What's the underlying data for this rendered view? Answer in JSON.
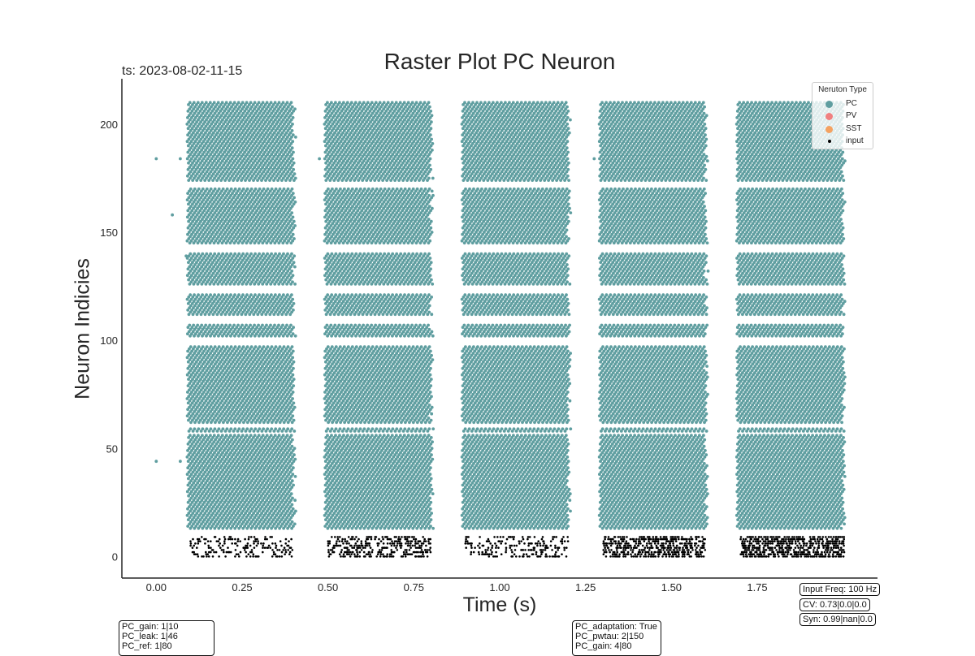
{
  "chart_data": {
    "type": "scatter",
    "title": "Raster Plot PC Neuron",
    "timestamp_label": "ts: 2023-08-02-11-15",
    "xlabel": "Time (s)",
    "ylabel": "Neuron Indicies",
    "xlim": [
      -0.1,
      2.1
    ],
    "ylim": [
      -10,
      221
    ],
    "xticks": [
      0.0,
      0.25,
      0.5,
      0.75,
      1.0,
      1.25,
      1.5,
      1.75
    ],
    "xtick_labels": [
      "0.00",
      "0.25",
      "0.50",
      "0.75",
      "1.00",
      "1.25",
      "1.50",
      "1.75"
    ],
    "yticks": [
      0,
      50,
      100,
      150,
      200
    ],
    "ytick_labels": [
      "0",
      "50",
      "100",
      "150",
      "200"
    ],
    "grid": false,
    "legend_position": "top-right",
    "legend_title": "Neruton Type",
    "series": [
      {
        "name": "PC",
        "color": "#5f9ea0",
        "neuron_range": [
          13,
          210
        ],
        "burst_windows": [
          [
            0.09,
            0.4
          ],
          [
            0.49,
            0.8
          ],
          [
            0.89,
            1.2
          ],
          [
            1.29,
            1.6
          ],
          [
            1.69,
            2.0
          ]
        ],
        "inactive_neurons": [
          57,
          60,
          61,
          98,
          99,
          100,
          101,
          108,
          109,
          110,
          111,
          122,
          123,
          124,
          125,
          141,
          142,
          143,
          144,
          171,
          172,
          173
        ]
      },
      {
        "name": "PV",
        "color": "#f08080",
        "points": []
      },
      {
        "name": "SST",
        "color": "#f4a261",
        "points": []
      },
      {
        "name": "input",
        "color": "#000000",
        "neuron_range": [
          0,
          9
        ],
        "burst_windows": [
          [
            0.1,
            0.4
          ],
          [
            0.5,
            0.8
          ],
          [
            0.9,
            1.2
          ],
          [
            1.3,
            1.6
          ],
          [
            1.7,
            2.0
          ]
        ],
        "density": [
          0.45,
          0.7,
          0.5,
          0.9,
          1.0
        ]
      }
    ],
    "isolated_pc_spikes": [
      {
        "x": 0.0,
        "y": 184
      },
      {
        "x": 0.07,
        "y": 184
      },
      {
        "x": 0.047,
        "y": 158
      },
      {
        "x": 0.087,
        "y": 139
      },
      {
        "x": 0.0,
        "y": 44
      },
      {
        "x": 0.07,
        "y": 44
      },
      {
        "x": 0.475,
        "y": 184
      },
      {
        "x": 1.275,
        "y": 184
      }
    ]
  },
  "info_boxes": {
    "left_params": [
      "PC_gain: 1|10",
      "PC_leak: 1|46",
      "PC_ref: 1|80"
    ],
    "middle_params": [
      "PC_adaptation: True",
      "PC_pwtau: 2|150",
      "PC_gain: 4|80"
    ],
    "input_freq": "Input Freq: 100 Hz",
    "cv": "CV: 0.73|0.0|0.0",
    "syn": "Syn: 0.99|nan|0.0"
  }
}
